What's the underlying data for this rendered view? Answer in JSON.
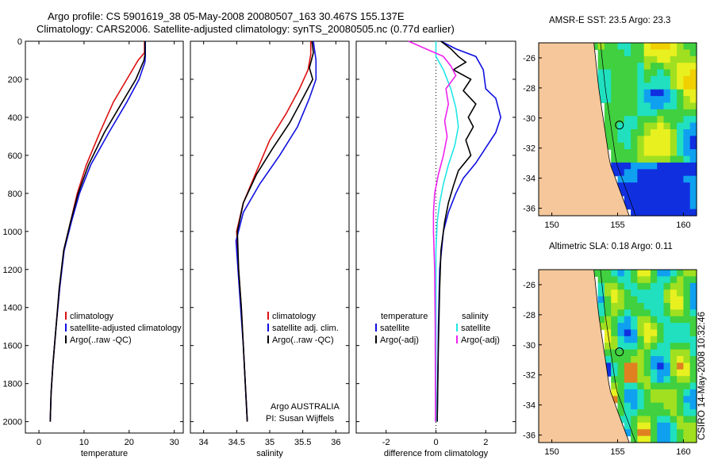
{
  "figure": {
    "title_line1": "Argo profile: CS 5901619_38 05-May-2008 20080507_163 30.467S 155.137E",
    "title_line2": "Climatology: CARS2006. Satellite-adjusted climatology: synTS_20080505.nc (0.77d earlier)",
    "stamp": "CSIRO 14-May-2008 10:32:46",
    "platform_text": "Argo AUSTRALIA",
    "pi_text": "PI: Susan Wijffels"
  },
  "colors": {
    "climatology": "#dd1111",
    "satellite": "#1010e0",
    "argo": "#000000",
    "sal_satellite": "#22e6e6",
    "sal_argo": "#ee22ee",
    "land": "#f5c79a"
  },
  "chart_data": [
    {
      "type": "line",
      "id": "temperature",
      "xlabel": "temperature",
      "ylabel": "",
      "xlim": [
        -3,
        32
      ],
      "ylim": [
        2060,
        0
      ],
      "xticks": [
        0,
        10,
        20,
        30
      ],
      "yticks": [
        0,
        200,
        400,
        600,
        800,
        1000,
        1200,
        1400,
        1600,
        1800,
        2000
      ],
      "legend": [
        "climatology",
        "satellite-adjusted climatology",
        "Argo(..raw -QC)"
      ],
      "series": [
        {
          "name": "climatology",
          "color": "#dd1111",
          "points": [
            [
              23.4,
              0
            ],
            [
              23.4,
              60
            ],
            [
              22,
              100
            ],
            [
              19.5,
              200
            ],
            [
              16.5,
              320
            ],
            [
              13.5,
              480
            ],
            [
              10.5,
              650
            ],
            [
              8.5,
              800
            ],
            [
              7,
              950
            ],
            [
              5.5,
              1100
            ],
            [
              4.6,
              1300
            ],
            [
              3.8,
              1500
            ],
            [
              3.1,
              1700
            ],
            [
              2.7,
              1850
            ],
            [
              2.5,
              2000
            ]
          ]
        },
        {
          "name": "satellite-adjusted climatology",
          "color": "#1010e0",
          "points": [
            [
              23.6,
              0
            ],
            [
              23.6,
              80
            ],
            [
              23.5,
              110
            ],
            [
              22.2,
              200
            ],
            [
              19.5,
              320
            ],
            [
              15.5,
              480
            ],
            [
              11.5,
              650
            ],
            [
              9,
              800
            ],
            [
              7.2,
              950
            ],
            [
              5.6,
              1100
            ],
            [
              4.6,
              1300
            ],
            [
              3.8,
              1500
            ],
            [
              3.1,
              1700
            ],
            [
              2.7,
              1850
            ],
            [
              2.5,
              2000
            ]
          ]
        },
        {
          "name": "Argo(..raw -QC)",
          "color": "#000000",
          "points": [
            [
              23.5,
              0
            ],
            [
              23.5,
              70
            ],
            [
              23.3,
              100
            ],
            [
              21.5,
              200
            ],
            [
              18.5,
              320
            ],
            [
              14.5,
              480
            ],
            [
              11,
              650
            ],
            [
              8.7,
              800
            ],
            [
              7,
              950
            ],
            [
              5.5,
              1100
            ],
            [
              4.5,
              1300
            ],
            [
              3.8,
              1500
            ],
            [
              3.1,
              1700
            ],
            [
              2.7,
              1850
            ],
            [
              2.5,
              2000
            ]
          ]
        }
      ]
    },
    {
      "type": "line",
      "id": "salinity",
      "xlabel": "salinity",
      "ylabel": "",
      "xlim": [
        33.8,
        36.2
      ],
      "ylim": [
        2060,
        0
      ],
      "xticks": [
        34,
        34.5,
        35,
        35.5,
        36
      ],
      "yticks": [
        0,
        200,
        400,
        600,
        800,
        1000,
        1200,
        1400,
        1600,
        1800,
        2000
      ],
      "legend": [
        "climatology",
        "satellite adj. clim.",
        "Argo(..raw -QC)"
      ],
      "series": [
        {
          "name": "climatology",
          "color": "#dd1111",
          "points": [
            [
              35.62,
              0
            ],
            [
              35.62,
              70
            ],
            [
              35.58,
              150
            ],
            [
              35.45,
              250
            ],
            [
              35.25,
              380
            ],
            [
              35,
              520
            ],
            [
              34.78,
              700
            ],
            [
              34.6,
              850
            ],
            [
              34.5,
              1000
            ],
            [
              34.53,
              1200
            ],
            [
              34.57,
              1400
            ],
            [
              34.6,
              1600
            ],
            [
              34.63,
              1800
            ],
            [
              34.66,
              2000
            ]
          ]
        },
        {
          "name": "satellite adj. clim.",
          "color": "#1010e0",
          "points": [
            [
              35.66,
              0
            ],
            [
              35.7,
              100
            ],
            [
              35.7,
              200
            ],
            [
              35.6,
              300
            ],
            [
              35.42,
              450
            ],
            [
              35.15,
              600
            ],
            [
              34.85,
              750
            ],
            [
              34.6,
              900
            ],
            [
              34.49,
              1050
            ],
            [
              34.52,
              1200
            ],
            [
              34.56,
              1400
            ],
            [
              34.6,
              1600
            ],
            [
              34.63,
              1800
            ],
            [
              34.66,
              2000
            ]
          ]
        },
        {
          "name": "Argo(..raw -QC)",
          "color": "#000000",
          "points": [
            [
              35.64,
              0
            ],
            [
              35.66,
              60
            ],
            [
              35.6,
              140
            ],
            [
              35.65,
              200
            ],
            [
              35.5,
              300
            ],
            [
              35.3,
              430
            ],
            [
              35.05,
              560
            ],
            [
              34.8,
              700
            ],
            [
              34.6,
              850
            ],
            [
              34.51,
              1000
            ],
            [
              34.53,
              1200
            ],
            [
              34.57,
              1400
            ],
            [
              34.6,
              1600
            ],
            [
              34.63,
              1800
            ],
            [
              34.66,
              2000
            ]
          ]
        }
      ]
    },
    {
      "type": "line",
      "id": "difference",
      "xlabel": "difference from climatology",
      "ylabel": "",
      "xlim": [
        -3.2,
        3.2
      ],
      "ylim": [
        2060,
        0
      ],
      "xticks": [
        -2,
        0,
        2
      ],
      "yticks": [
        0,
        200,
        400,
        600,
        800,
        1000,
        1200,
        1400,
        1600,
        1800,
        2000
      ],
      "legend": [
        "temperature",
        "satellite",
        "Argo(-adj)",
        "salinity",
        "satellite",
        "Argo(-adj)"
      ],
      "series": [
        {
          "name": "temperature satellite",
          "color": "#1010e0",
          "points": [
            [
              0.2,
              0
            ],
            [
              0.8,
              40
            ],
            [
              1.6,
              80
            ],
            [
              1.9,
              150
            ],
            [
              2.0,
              250
            ],
            [
              2.4,
              300
            ],
            [
              2.6,
              400
            ],
            [
              2.4,
              480
            ],
            [
              2,
              560
            ],
            [
              1.6,
              640
            ],
            [
              1.1,
              720
            ],
            [
              0.8,
              800
            ],
            [
              0.5,
              900
            ],
            [
              0.3,
              1000
            ],
            [
              0.15,
              1200
            ],
            [
              0.1,
              1500
            ],
            [
              0.05,
              2000
            ]
          ]
        },
        {
          "name": "temperature Argo(-adj)",
          "color": "#000000",
          "points": [
            [
              0.2,
              0
            ],
            [
              0.6,
              40
            ],
            [
              0.9,
              80
            ],
            [
              1.2,
              110
            ],
            [
              0.7,
              150
            ],
            [
              1.4,
              200
            ],
            [
              1.1,
              260
            ],
            [
              1.6,
              330
            ],
            [
              1.3,
              400
            ],
            [
              1.5,
              450
            ],
            [
              1.2,
              520
            ],
            [
              1.4,
              600
            ],
            [
              0.9,
              680
            ],
            [
              0.7,
              760
            ],
            [
              0.5,
              850
            ],
            [
              0.35,
              950
            ],
            [
              0.2,
              1100
            ],
            [
              0.15,
              1300
            ],
            [
              0.1,
              1600
            ],
            [
              0.05,
              2000
            ]
          ]
        },
        {
          "name": "salinity satellite",
          "color": "#22e6e6",
          "points": [
            [
              0,
              0
            ],
            [
              0,
              80
            ],
            [
              0.3,
              150
            ],
            [
              0.6,
              250
            ],
            [
              0.8,
              350
            ],
            [
              0.9,
              450
            ],
            [
              0.75,
              550
            ],
            [
              0.5,
              650
            ],
            [
              0.3,
              750
            ],
            [
              0.15,
              850
            ],
            [
              0.05,
              950
            ],
            [
              0,
              1100
            ],
            [
              0,
              1400
            ],
            [
              0,
              2000
            ]
          ]
        },
        {
          "name": "salinity Argo(-adj)",
          "color": "#ee22ee",
          "points": [
            [
              -1.1,
              0
            ],
            [
              -0.4,
              40
            ],
            [
              0.3,
              80
            ],
            [
              0.6,
              130
            ],
            [
              0.8,
              180
            ],
            [
              0.4,
              250
            ],
            [
              0.5,
              330
            ],
            [
              0.35,
              420
            ],
            [
              0.45,
              500
            ],
            [
              0.3,
              600
            ],
            [
              0.1,
              700
            ],
            [
              -0.05,
              800
            ],
            [
              -0.1,
              900
            ],
            [
              -0.1,
              1000
            ],
            [
              -0.05,
              1200
            ],
            [
              -0.03,
              1500
            ],
            [
              -0.02,
              2000
            ]
          ]
        }
      ]
    },
    {
      "type": "heatmap",
      "id": "sst_map",
      "title": "AMSR-E SST: 23.5 Argo: 23.3",
      "xlim": [
        149,
        161
      ],
      "ylim": [
        -36.5,
        -25
      ],
      "xticks": [
        150,
        155,
        160
      ],
      "yticks": [
        -26,
        -28,
        -30,
        -32,
        -34,
        -36
      ],
      "argo_position": [
        155.137,
        -30.467
      ]
    },
    {
      "type": "heatmap",
      "id": "sla_map",
      "title": "Altimetric SLA: 0.18 Argo: 0.11",
      "xlim": [
        149,
        161
      ],
      "ylim": [
        -36.5,
        -25
      ],
      "xticks": [
        150,
        155,
        160
      ],
      "yticks": [
        -26,
        -28,
        -30,
        -32,
        -34,
        -36
      ],
      "argo_position": [
        155.137,
        -30.467
      ]
    }
  ]
}
